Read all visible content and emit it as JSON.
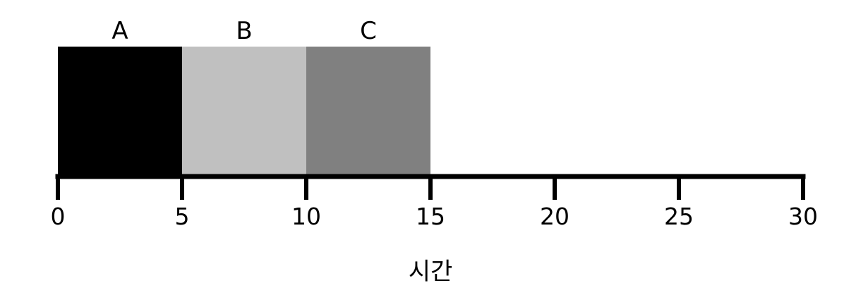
{
  "chart_data": {
    "type": "bar",
    "orientation": "horizontal-stacked",
    "categories": [
      "A",
      "B",
      "C"
    ],
    "segments": [
      {
        "label": "A",
        "start": 0,
        "end": 5,
        "color": "#000000"
      },
      {
        "label": "B",
        "start": 5,
        "end": 10,
        "color": "#c0c0c0"
      },
      {
        "label": "C",
        "start": 10,
        "end": 15,
        "color": "#808080"
      }
    ],
    "xlabel": "시간",
    "ylabel": "",
    "title": "",
    "xlim": [
      0,
      30
    ],
    "xticks": [
      "0",
      "5",
      "10",
      "15",
      "20",
      "25",
      "30"
    ],
    "grid": false,
    "legend": "none"
  }
}
